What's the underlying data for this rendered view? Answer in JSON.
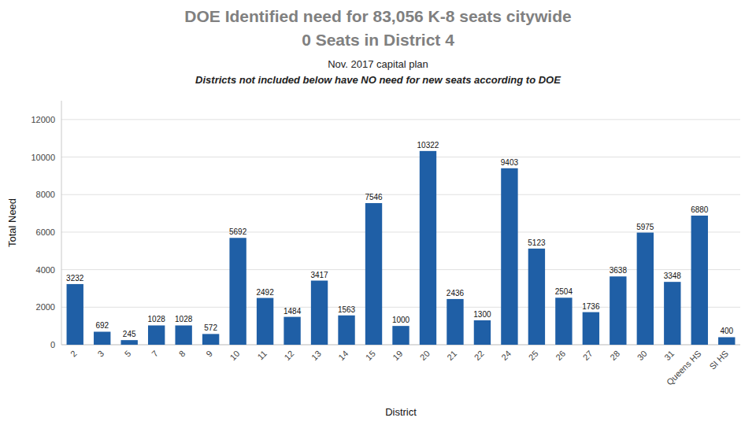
{
  "chart_data": {
    "type": "bar",
    "title": [
      "DOE Identified need for 83,056 K-8 seats citywide",
      "0 Seats in District 4"
    ],
    "subtitle": "Nov. 2017 capital plan",
    "annotations": [
      "Districts not included below have NO need for new seats according to DOE"
    ],
    "xlabel": "District",
    "ylabel": "Total Need",
    "categories": [
      "2",
      "3",
      "5",
      "7",
      "8",
      "9",
      "10",
      "11",
      "12",
      "13",
      "14",
      "15",
      "19",
      "20",
      "21",
      "22",
      "24",
      "25",
      "26",
      "27",
      "28",
      "30",
      "31",
      "Queens HS",
      "SI HS"
    ],
    "values": [
      3232,
      692,
      245,
      1028,
      1028,
      572,
      5692,
      2492,
      1484,
      3417,
      1563,
      7546,
      1000,
      10322,
      2436,
      1300,
      9403,
      5123,
      2504,
      1736,
      3638,
      5975,
      3348,
      6880,
      400
    ],
    "color": "#1f5fa6",
    "ylim": [
      0,
      13000
    ],
    "yticks": [
      0,
      2000,
      4000,
      6000,
      8000,
      10000,
      12000
    ],
    "grid": true,
    "data_labels": true
  }
}
